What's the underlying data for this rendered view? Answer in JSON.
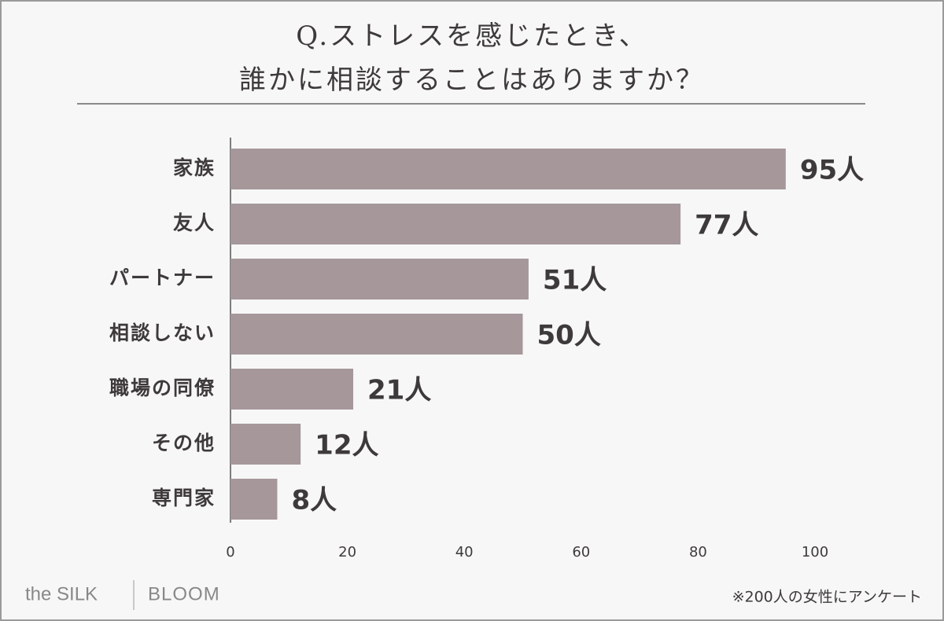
{
  "chart_data": {
    "type": "hbar",
    "title": [
      "Q.ストレスを感じたとき、",
      "誰かに相談することはありますか？"
    ],
    "categories": [
      "家族",
      "友人",
      "パートナー",
      "相談しない",
      "職場の同僚",
      "その他",
      "専門家"
    ],
    "values": [
      95,
      77,
      51,
      50,
      21,
      12,
      8
    ],
    "value_labels": [
      "95人",
      "77人",
      "51人",
      "50人",
      "21人",
      "12人",
      "8人"
    ],
    "color": "#a5979a",
    "xlim": [
      0,
      100
    ],
    "xticks": [
      0,
      20,
      40,
      60,
      80,
      100
    ],
    "logo": [
      "the SILK",
      "BLOOM"
    ],
    "note": "※200人の女性にアンケート"
  }
}
